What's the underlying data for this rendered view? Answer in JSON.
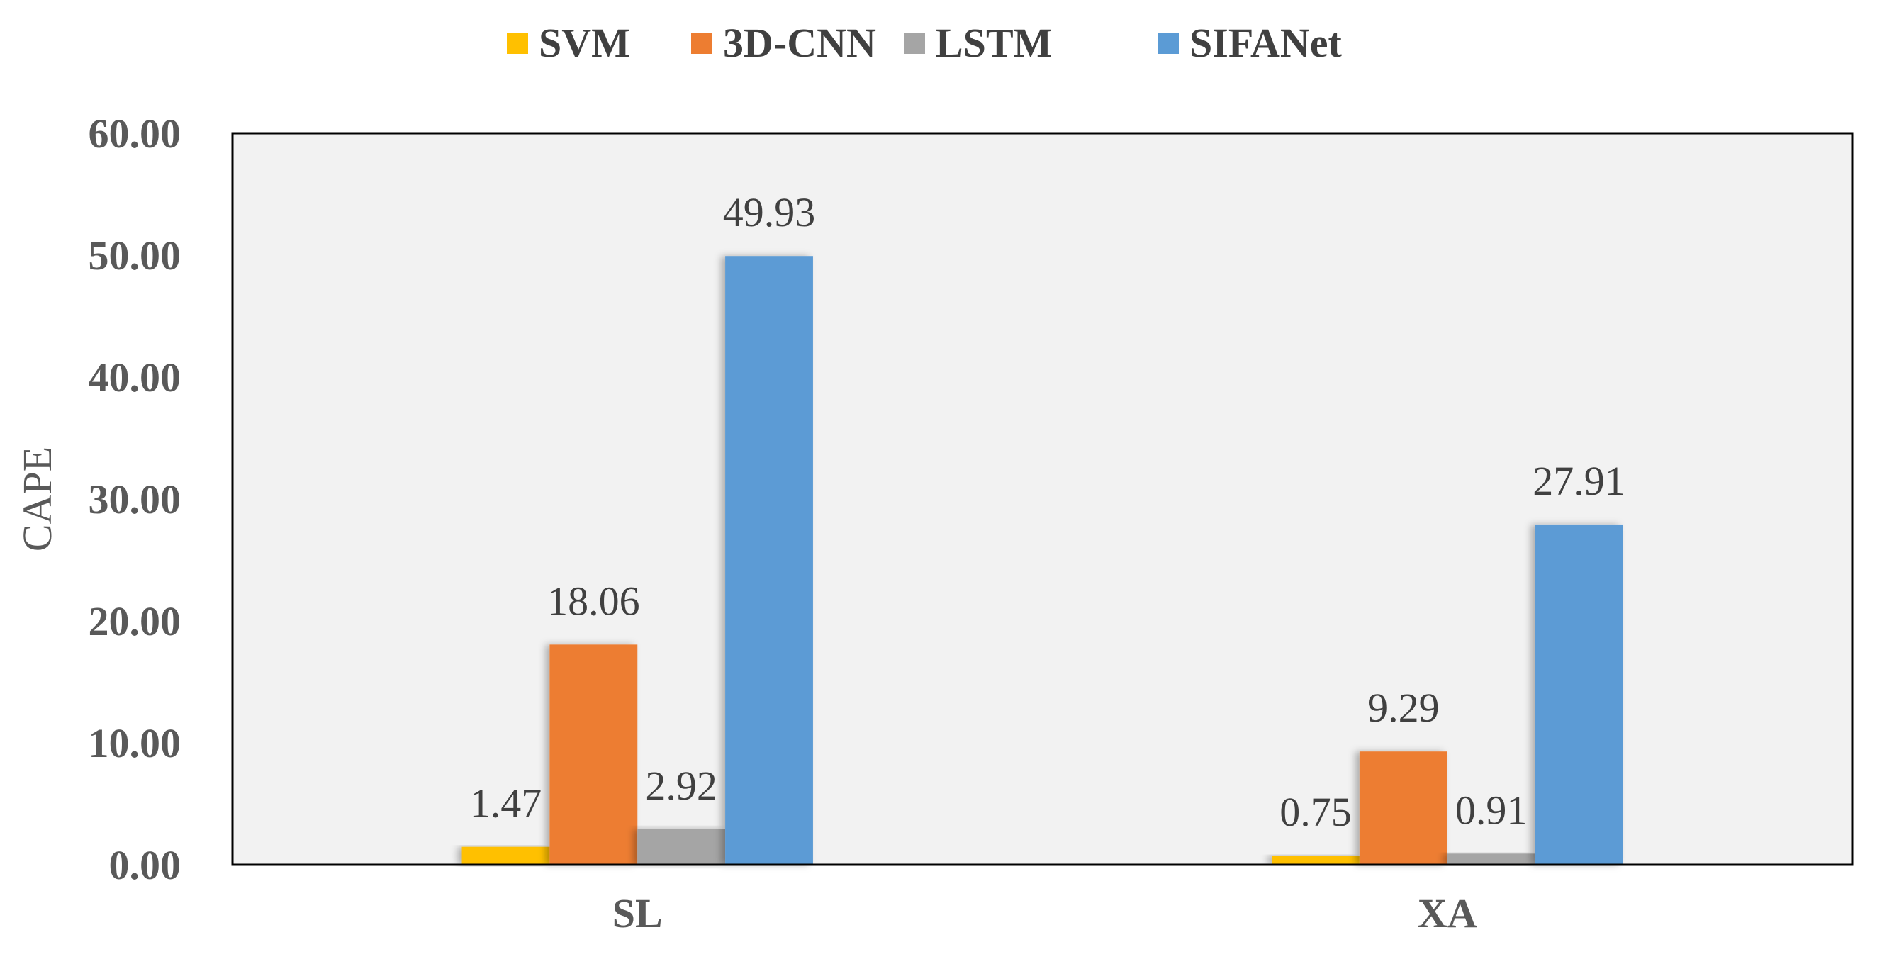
{
  "chart_data": {
    "type": "bar",
    "categories": [
      "SL",
      "XA"
    ],
    "series": [
      {
        "name": "SVM",
        "values": [
          1.47,
          0.75
        ],
        "color": "#FFC000"
      },
      {
        "name": "3D-CNN",
        "values": [
          18.06,
          9.29
        ],
        "color": "#ED7D31"
      },
      {
        "name": "LSTM",
        "values": [
          2.92,
          0.91
        ],
        "color": "#A5A5A5"
      },
      {
        "name": "SIFANet",
        "values": [
          49.93,
          27.91
        ],
        "color": "#5B9BD5"
      }
    ],
    "title": "",
    "xlabel": "",
    "ylabel": "CAPE",
    "ylim": [
      0,
      60
    ],
    "yticks": [
      "0.00",
      "10.00",
      "20.00",
      "30.00",
      "40.00",
      "50.00",
      "60.00"
    ],
    "value_labels": [
      [
        "1.47",
        "0.75"
      ],
      [
        "18.06",
        "9.29"
      ],
      [
        "2.92",
        "0.91"
      ],
      [
        "49.93",
        "27.91"
      ]
    ],
    "legend_position": "top-center",
    "grid": false,
    "plot_background": "#F2F2F2"
  }
}
